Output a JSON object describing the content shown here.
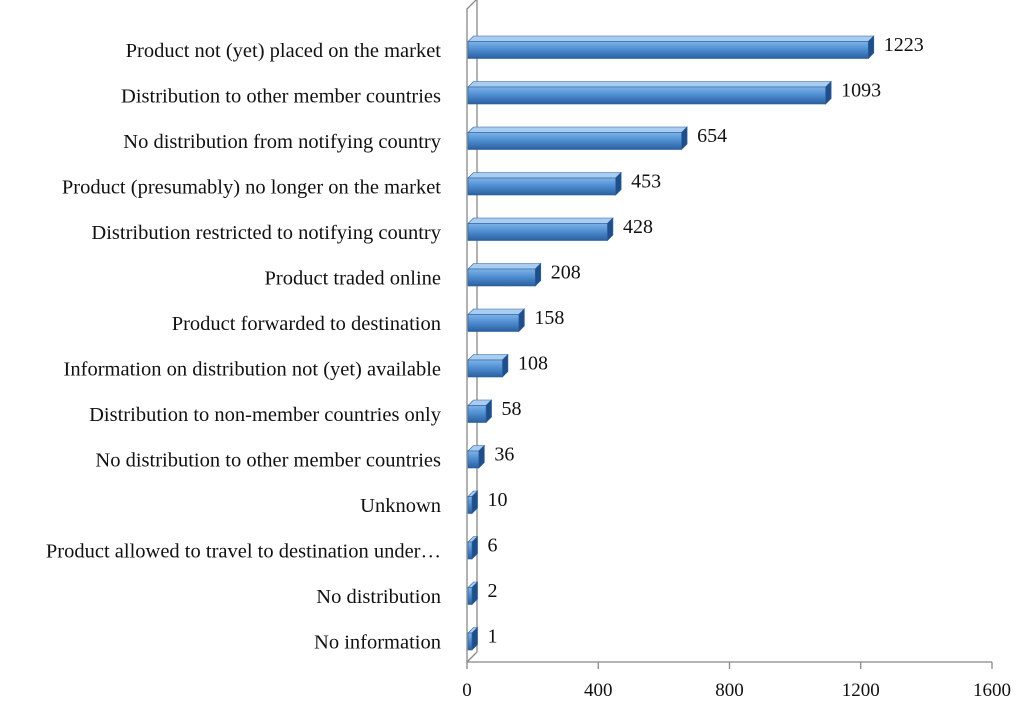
{
  "chart_data": {
    "type": "bar",
    "orientation": "horizontal",
    "style": "3d",
    "categories": [
      "Product not (yet) placed on the market",
      "Distribution to other member countries",
      "No distribution from notifying country",
      "Product (presumably) no longer on the market",
      "Distribution restricted to notifying country",
      "Product traded online",
      "Product forwarded to destination",
      "Information on distribution not (yet) available",
      "Distribution to non-member countries only",
      "No distribution to other member countries",
      "Unknown",
      "Product allowed to travel to destination under…",
      "No distribution",
      "No information"
    ],
    "values": [
      1223,
      1093,
      654,
      453,
      428,
      208,
      158,
      108,
      58,
      36,
      10,
      6,
      2,
      1
    ],
    "data_labels": [
      "1223",
      "1093",
      "654",
      "453",
      "428",
      "208",
      "158",
      "108",
      "58",
      "36",
      "10",
      "6",
      "2",
      "1"
    ],
    "xlim": [
      0,
      1600
    ],
    "xticks": [
      0,
      400,
      800,
      1200,
      1600
    ],
    "xtick_labels": [
      "0",
      "400",
      "800",
      "1200",
      "1600"
    ],
    "grid": false,
    "legend": "none",
    "colors": {
      "bar_front": "#4f8fd2",
      "bar_front_light": "#7fb3e6",
      "bar_top": "#a9cdf0",
      "bar_side": "#1f4f8a",
      "bar_edge": "#2b5f9e",
      "axis": "#888888"
    }
  }
}
